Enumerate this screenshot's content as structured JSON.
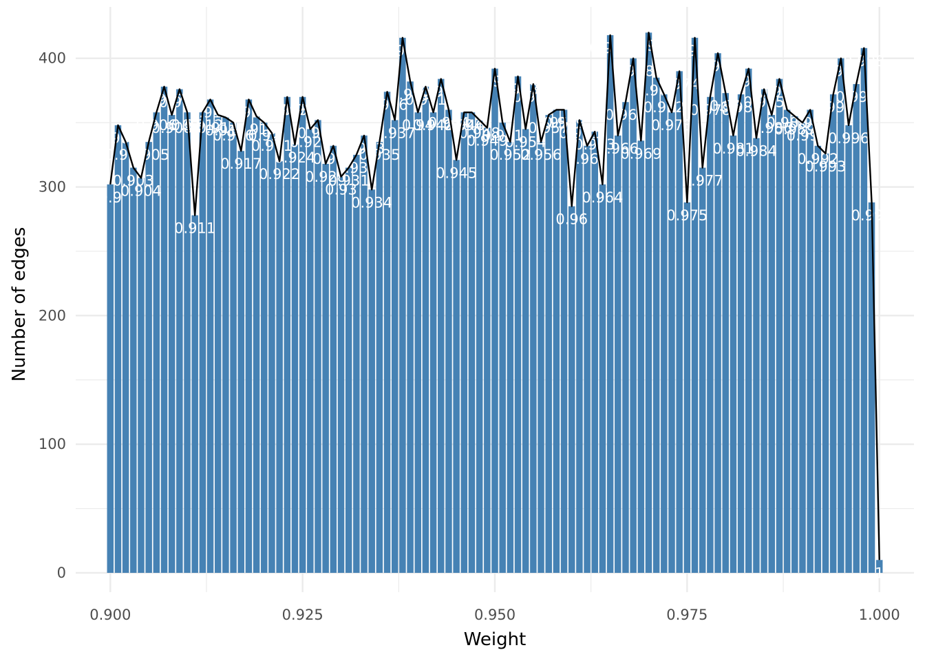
{
  "chart_data": {
    "type": "bar",
    "title": "",
    "xlabel": "Weight",
    "ylabel": "Number of edges",
    "xlim": [
      0.8955,
      1.0045
    ],
    "ylim": [
      -15,
      440
    ],
    "x_ticks": [
      0.9,
      0.925,
      0.95,
      0.975,
      1.0
    ],
    "x_tick_labels": [
      "0.900",
      "0.925",
      "0.950",
      "0.975",
      "1.000"
    ],
    "y_ticks": [
      0,
      100,
      200,
      300,
      400
    ],
    "y_tick_labels": [
      "0",
      "100",
      "200",
      "300",
      "400"
    ],
    "grid": true,
    "colors": {
      "bars": "#4682b4",
      "line": "#000000",
      "labels": "#ffffff",
      "grid": "#ebebeb"
    },
    "bar_width": 0.00085,
    "x": [
      0.9,
      0.901,
      0.902,
      0.903,
      0.904,
      0.905,
      0.906,
      0.907,
      0.908,
      0.909,
      0.91,
      0.911,
      0.912,
      0.913,
      0.914,
      0.915,
      0.916,
      0.917,
      0.918,
      0.919,
      0.92,
      0.921,
      0.922,
      0.923,
      0.924,
      0.925,
      0.926,
      0.927,
      0.928,
      0.929,
      0.93,
      0.931,
      0.932,
      0.933,
      0.934,
      0.935,
      0.936,
      0.937,
      0.938,
      0.939,
      0.94,
      0.941,
      0.942,
      0.943,
      0.944,
      0.945,
      0.946,
      0.947,
      0.948,
      0.949,
      0.95,
      0.951,
      0.952,
      0.953,
      0.954,
      0.955,
      0.956,
      0.957,
      0.958,
      0.959,
      0.96,
      0.961,
      0.962,
      0.963,
      0.964,
      0.965,
      0.966,
      0.967,
      0.968,
      0.969,
      0.97,
      0.971,
      0.972,
      0.973,
      0.974,
      0.975,
      0.976,
      0.977,
      0.978,
      0.979,
      0.98,
      0.981,
      0.982,
      0.983,
      0.984,
      0.985,
      0.986,
      0.987,
      0.988,
      0.989,
      0.99,
      0.991,
      0.992,
      0.993,
      0.994,
      0.995,
      0.996,
      0.997,
      0.998,
      0.999,
      1.0
    ],
    "values": [
      302,
      348,
      335,
      315,
      307,
      335,
      358,
      378,
      356,
      376,
      358,
      278,
      358,
      368,
      356,
      354,
      350,
      328,
      368,
      355,
      350,
      342,
      320,
      370,
      333,
      370,
      345,
      352,
      318,
      332,
      308,
      315,
      325,
      340,
      298,
      335,
      374,
      352,
      416,
      382,
      358,
      378,
      358,
      384,
      360,
      321,
      358,
      358,
      352,
      346,
      392,
      350,
      335,
      386,
      345,
      380,
      335,
      356,
      360,
      360,
      285,
      352,
      332,
      343,
      302,
      418,
      340,
      366,
      400,
      336,
      420,
      385,
      372,
      358,
      390,
      288,
      416,
      315,
      370,
      404,
      373,
      340,
      372,
      392,
      338,
      376,
      356,
      384,
      360,
      355,
      350,
      360,
      332,
      326,
      372,
      400,
      348,
      380,
      408,
      288,
      10
    ],
    "data_labels": [
      "0.9",
      "0.901",
      "0.902",
      "0.903",
      "0.904",
      "0.905",
      "0.906",
      "0.907",
      "0.908",
      "0.909",
      "0.91",
      "0.911",
      "0.912",
      "0.913",
      "0.914",
      "0.915",
      "0.916",
      "0.917",
      "0.918",
      "0.919",
      "0.92",
      "0.921",
      "0.922",
      "0.923",
      "0.924",
      "0.925",
      "0.926",
      "0.927",
      "0.928",
      "0.929",
      "0.93",
      "0.931",
      "0.932",
      "0.933",
      "0.934",
      "0.935",
      "0.936",
      "0.937",
      "0.938",
      "0.939",
      "0.94",
      "0.941",
      "0.942",
      "0.943",
      "0.944",
      "0.945",
      "0.946",
      "0.947",
      "0.948",
      "0.949",
      "0.95",
      "0.951",
      "0.952",
      "0.953",
      "0.954",
      "0.955",
      "0.956",
      "0.957",
      "0.958",
      "0.959",
      "0.96",
      "0.961",
      "0.962",
      "0.963",
      "0.964",
      "0.965",
      "0.966",
      "0.967",
      "0.968",
      "0.969",
      "0.97",
      "0.971",
      "0.972",
      "0.973",
      "0.974",
      "0.975",
      "0.976",
      "0.977",
      "0.978",
      "0.979",
      "0.98",
      "0.981",
      "0.982",
      "0.983",
      "0.984",
      "0.985",
      "0.986",
      "0.987",
      "0.988",
      "0.989",
      "0.99",
      "0.991",
      "0.992",
      "0.993",
      "0.994",
      "0.995",
      "0.996",
      "0.997",
      "0.998",
      "0.999",
      "1"
    ]
  }
}
